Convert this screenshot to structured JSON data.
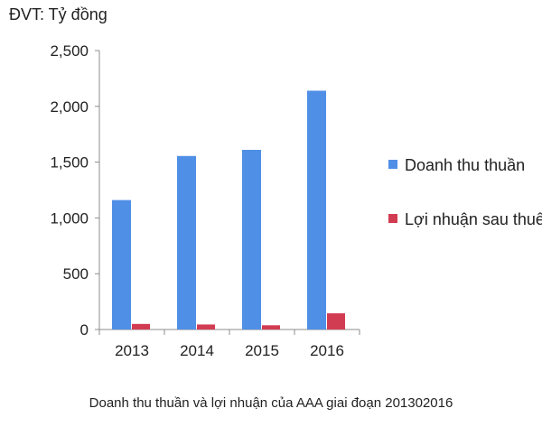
{
  "chart_data": {
    "type": "bar",
    "unit_label": "ĐVT: Tỷ đồng",
    "categories": [
      "2013",
      "2014",
      "2015",
      "2016"
    ],
    "series": [
      {
        "name": "Doanh thu thuần",
        "color": "#4f8fe6",
        "values": [
          1160,
          1555,
          1610,
          2140
        ]
      },
      {
        "name": "Lợi nhuận sau thuế",
        "color": "#d23c52",
        "values": [
          50,
          45,
          38,
          145
        ]
      }
    ],
    "ylim": [
      0,
      2500
    ],
    "yticks": [
      0,
      500,
      1000,
      1500,
      2000,
      2500
    ],
    "ytick_labels": [
      "0",
      "500",
      "1,000",
      "1,500",
      "2,000",
      "2,500"
    ],
    "grid": false,
    "legend_position": "right",
    "caption": "Doanh thu thuần và lợi nhuận của AAA giai đoạn 201302016"
  }
}
